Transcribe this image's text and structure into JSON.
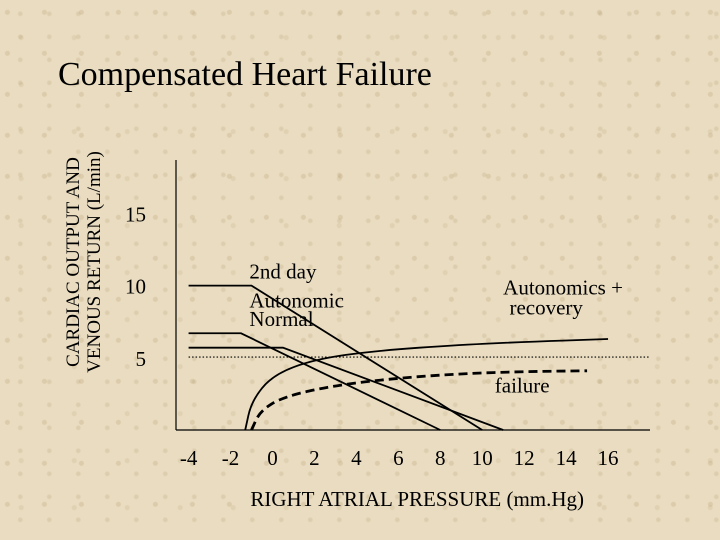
{
  "chart_data": {
    "type": "line",
    "title": "Compensated Heart Failure",
    "ylabel_lines": [
      "CARDIAC OUTPUT AND",
      "VENOUS RETURN (L/min)"
    ],
    "xlabel": "RIGHT ATRIAL PRESSURE (mm.Hg)",
    "xlim": [
      -4.6,
      18
    ],
    "ylim": [
      0,
      18.7
    ],
    "x_ticks": [
      -4,
      -2,
      0,
      2,
      4,
      6,
      8,
      10,
      12,
      14,
      16
    ],
    "y_ticks": [
      5,
      10,
      15
    ],
    "grid": false,
    "series": [
      {
        "style": "solid-thin",
        "points": [
          [
            -4,
            10
          ],
          [
            -1,
            10
          ],
          [
            10,
            0
          ]
        ]
      },
      {
        "style": "solid-thin",
        "points": [
          [
            -4,
            6.7
          ],
          [
            -1.5,
            6.7
          ],
          [
            8,
            0
          ]
        ]
      },
      {
        "style": "solid-thin",
        "points": [
          [
            -4,
            5.7
          ],
          [
            0.5,
            5.7
          ],
          [
            11,
            0
          ]
        ]
      },
      {
        "style": "solid-thin",
        "points": [
          [
            -1.3,
            0
          ],
          [
            -1,
            2
          ],
          [
            0,
            3.8
          ],
          [
            2,
            4.9
          ],
          [
            5,
            5.5
          ],
          [
            9,
            5.9
          ],
          [
            12,
            6.1
          ],
          [
            16,
            6.3
          ]
        ]
      },
      {
        "style": "dashed-bold",
        "points": [
          [
            -1,
            0
          ],
          [
            -0.6,
            1.3
          ],
          [
            0.5,
            2.3
          ],
          [
            3,
            3.1
          ],
          [
            6,
            3.6
          ],
          [
            9,
            3.9
          ],
          [
            12,
            4.05
          ],
          [
            15,
            4.1
          ]
        ]
      },
      {
        "style": "dotted",
        "points": [
          [
            -4,
            5.05
          ],
          [
            18,
            5.05
          ]
        ]
      }
    ],
    "annotations": [
      {
        "id": "day2",
        "text": "2nd day",
        "x": -1.1,
        "y": 10.5,
        "anchor": "start"
      },
      {
        "id": "autonomic",
        "text": "Autonomic",
        "x": -1.1,
        "y": 8.5,
        "anchor": "start"
      },
      {
        "id": "normal",
        "text": "Normal",
        "x": -1.1,
        "y": 7.2,
        "anchor": "start"
      },
      {
        "id": "autonomics-recovery-1",
        "text": "Autonomics +",
        "x": 11,
        "y": 9.4,
        "anchor": "start"
      },
      {
        "id": "autonomics-recovery-2",
        "text": "recovery",
        "x": 11.3,
        "y": 8,
        "anchor": "start"
      },
      {
        "id": "failure",
        "text": "failure",
        "x": 10.6,
        "y": 2.6,
        "anchor": "start"
      }
    ]
  }
}
